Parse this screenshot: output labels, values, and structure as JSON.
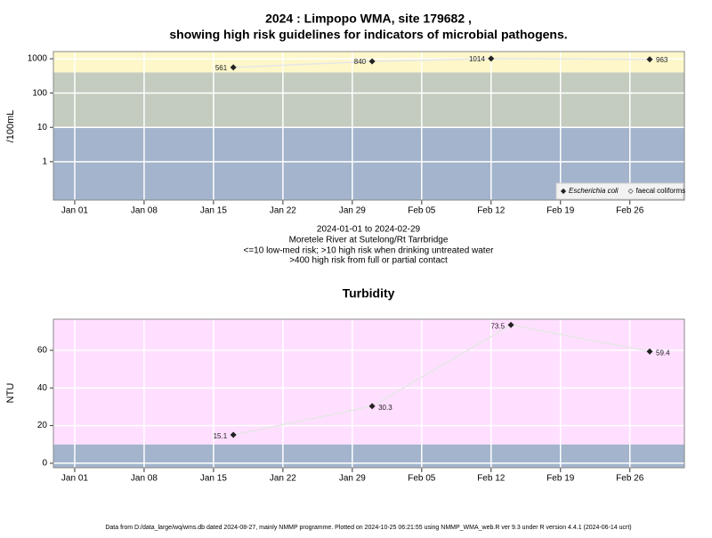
{
  "chart_data": [
    {
      "type": "scatter",
      "title": [
        "2024 : Limpopo WMA, site 179682 ,",
        "showing high risk guidelines for indicators of microbial pathogens."
      ],
      "y_label": "/100mL",
      "log_y": true,
      "x": [
        17,
        31,
        43,
        59
      ],
      "series": [
        {
          "name": "Escherichia coli",
          "color": "#222222",
          "values": [
            561,
            840,
            1014,
            963
          ]
        },
        {
          "name": "faecal coliforms",
          "color": "#666666",
          "values": [
            null,
            null,
            null,
            null
          ]
        }
      ],
      "xlim": [
        -1.15,
        62.5
      ],
      "xticks": [
        {
          "value": 1,
          "label": "Jan 01"
        },
        {
          "value": 8,
          "label": "Jan 08"
        },
        {
          "value": 15,
          "label": "Jan 15"
        },
        {
          "value": 22,
          "label": "Jan 22"
        },
        {
          "value": 29,
          "label": "Jan 29"
        },
        {
          "value": 36,
          "label": "Feb 05"
        },
        {
          "value": 43,
          "label": "Feb 12"
        },
        {
          "value": 50,
          "label": "Feb 19"
        },
        {
          "value": 57,
          "label": "Feb 26"
        }
      ],
      "ylim": [
        0.076,
        1620
      ],
      "yticks": [
        1,
        10,
        100,
        1000
      ],
      "bands": [
        {
          "from": 0.076,
          "to": 10,
          "color": "#a3b4cc"
        },
        {
          "from": 10,
          "to": 400,
          "color": "#c3ccbf"
        },
        {
          "from": 400,
          "to": 1620,
          "color": "#fdf7ca"
        }
      ],
      "grid": true,
      "legend": "bottom-right",
      "caption": [
        "2024-01-01 to 2024-02-29",
        "Moretele River at Sutelong/Rt Tarrbridge",
        "<=10 low-med risk; >10 high risk when drinking untreated water",
        ">400 high risk from full or partial contact"
      ]
    },
    {
      "type": "scatter",
      "title": "Turbidity",
      "y_label": "NTU",
      "log_y": false,
      "x": [
        17,
        31,
        45,
        59
      ],
      "series": [
        {
          "name": "Turbidity",
          "color": "#222222",
          "values": [
            15.1,
            30.3,
            73.5,
            59.4
          ]
        }
      ],
      "xlim": [
        -1.15,
        62.5
      ],
      "xticks": [
        {
          "value": 1,
          "label": "Jan 01"
        },
        {
          "value": 8,
          "label": "Jan 08"
        },
        {
          "value": 15,
          "label": "Jan 15"
        },
        {
          "value": 22,
          "label": "Jan 22"
        },
        {
          "value": 29,
          "label": "Jan 29"
        },
        {
          "value": 36,
          "label": "Feb 05"
        },
        {
          "value": 43,
          "label": "Feb 12"
        },
        {
          "value": 50,
          "label": "Feb 19"
        },
        {
          "value": 57,
          "label": "Feb 26"
        }
      ],
      "ylim": [
        -2.4,
        76.5
      ],
      "yticks": [
        0,
        20,
        40,
        60
      ],
      "bands": [
        {
          "from": -2.4,
          "to": 10,
          "color": "#a3b4cc"
        },
        {
          "from": 10,
          "to": 76.5,
          "color": "#ffdfff"
        }
      ],
      "grid": true
    }
  ],
  "footer": "Data from D:/data_large/wq/wms.db dated 2024-08-27, mainly NMMP programme. Plotted on 2024-10-25 06:21:55 using NMMP_WMA_web.R ver 9.3 under R version 4.4.1 (2024-06-14 ucrt)"
}
